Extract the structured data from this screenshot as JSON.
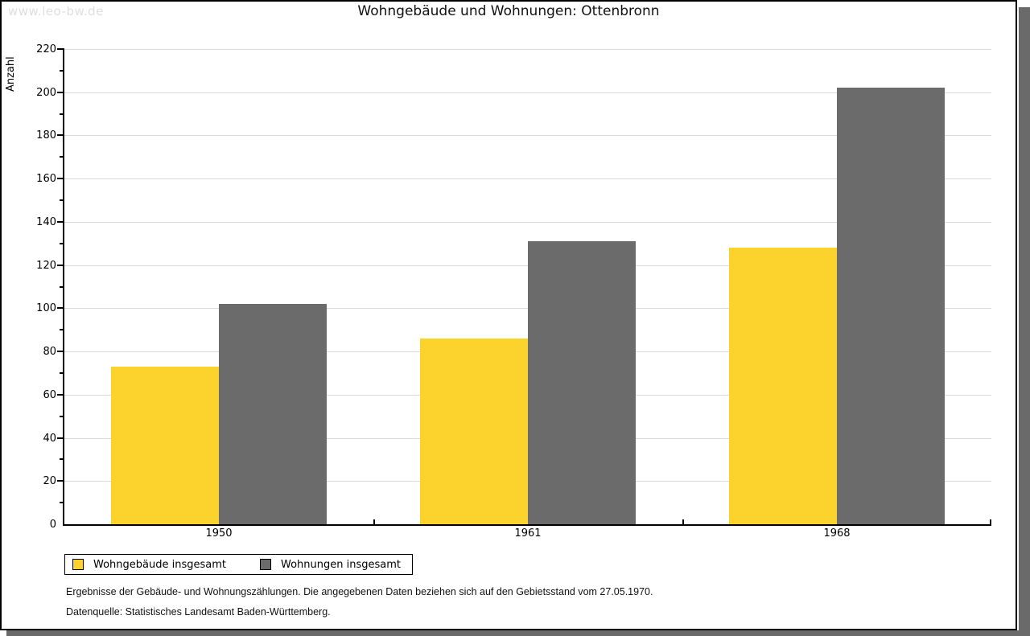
{
  "watermark": "www.leo-bw.de",
  "title": "Wohngebäude und Wohnungen: Ottenbronn",
  "chart_data": {
    "type": "bar",
    "title": "Wohngebäude und Wohnungen: Ottenbronn",
    "xlabel": "",
    "ylabel": "Anzahl",
    "categories": [
      "1950",
      "1961",
      "1968"
    ],
    "series": [
      {
        "name": "Wohngebäude insgesamt",
        "color": "#FCD32D",
        "values": [
          73,
          86,
          128
        ]
      },
      {
        "name": "Wohnungen insgesamt",
        "color": "#6B6B6B",
        "values": [
          102,
          131,
          202
        ]
      }
    ],
    "ylim": [
      0,
      220
    ],
    "ytick_major": 20,
    "ytick_minor": 10,
    "grid": true,
    "legend_position": "bottom-left",
    "gridline_color": "#D9D9D9"
  },
  "footer": {
    "note": "Ergebnisse der Gebäude- und Wohnungszählungen. Die angegebenen Daten beziehen sich auf den Gebietsstand vom 27.05.1970.",
    "source": "Datenquelle: Statistisches Landesamt Baden-Württemberg."
  }
}
